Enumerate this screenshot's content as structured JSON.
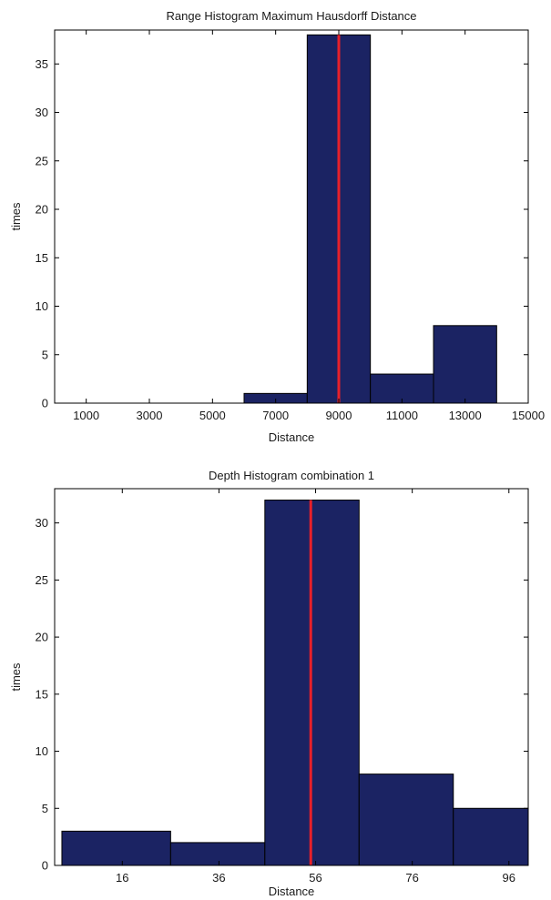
{
  "colors": {
    "bar_fill": "#1b2363",
    "reference_line": "#e8202a"
  },
  "chart_data": [
    {
      "type": "bar",
      "title": "Range Histogram Maximum Hausdorff Distance",
      "xlabel": "Distance",
      "ylabel": "times",
      "xlim": [
        0,
        15000
      ],
      "ylim": [
        0,
        38.5
      ],
      "xticks": [
        1000,
        3000,
        5000,
        7000,
        9000,
        11000,
        13000,
        15000
      ],
      "xtick_labels": [
        "1000",
        "3000",
        "5000",
        "7000",
        "9000",
        "11000",
        "13000",
        "15000"
      ],
      "yticks": [
        0,
        5,
        10,
        15,
        20,
        25,
        30,
        35
      ],
      "ytick_labels": [
        "0",
        "5",
        "10",
        "15",
        "20",
        "25",
        "30",
        "35"
      ],
      "bins": [
        {
          "start": 2000,
          "end": 4000,
          "count": 0
        },
        {
          "start": 4000,
          "end": 6000,
          "count": 0
        },
        {
          "start": 6000,
          "end": 8000,
          "count": 1
        },
        {
          "start": 8000,
          "end": 10000,
          "count": 38
        },
        {
          "start": 10000,
          "end": 12000,
          "count": 3
        },
        {
          "start": 12000,
          "end": 14000,
          "count": 8
        }
      ],
      "reference_line_x": 9000,
      "grid": false
    },
    {
      "type": "bar",
      "title": "Depth Histogram combination 1",
      "xlabel": "Distance",
      "ylabel": "times",
      "xlim": [
        2,
        100
      ],
      "ylim": [
        0,
        33
      ],
      "xticks": [
        16,
        36,
        56,
        76,
        96
      ],
      "xtick_labels": [
        "16",
        "36",
        "56",
        "76",
        "96"
      ],
      "yticks": [
        0,
        5,
        10,
        15,
        20,
        25,
        30
      ],
      "ytick_labels": [
        "0",
        "5",
        "10",
        "15",
        "20",
        "25",
        "30"
      ],
      "bins": [
        {
          "start": 3.5,
          "end": 26,
          "count": 3
        },
        {
          "start": 26,
          "end": 45.5,
          "count": 2
        },
        {
          "start": 45.5,
          "end": 65,
          "count": 32
        },
        {
          "start": 65,
          "end": 84.5,
          "count": 8
        },
        {
          "start": 84.5,
          "end": 100,
          "count": 5
        }
      ],
      "reference_line_x": 55,
      "grid": false
    }
  ]
}
